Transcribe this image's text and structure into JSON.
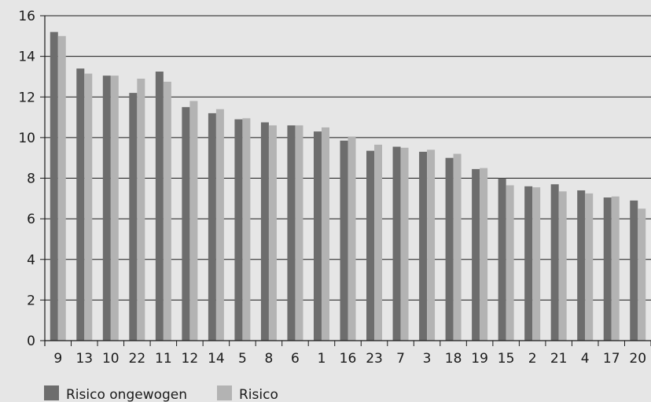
{
  "chart_data": {
    "type": "bar",
    "title": "",
    "xlabel": "",
    "ylabel": "",
    "ylim": [
      0,
      16
    ],
    "yticks": [
      0,
      2,
      4,
      6,
      8,
      10,
      12,
      14,
      16
    ],
    "grid": true,
    "legend_position": "bottom-left",
    "categories": [
      "9",
      "13",
      "10",
      "22",
      "11",
      "12",
      "14",
      "5",
      "8",
      "6",
      "1",
      "16",
      "23",
      "7",
      "3",
      "18",
      "19",
      "15",
      "2",
      "21",
      "4",
      "17",
      "20"
    ],
    "series": [
      {
        "name": "Risico ongewogen",
        "color": "#6d6d6d",
        "values": [
          15.2,
          13.4,
          13.05,
          12.2,
          13.25,
          11.5,
          11.2,
          10.9,
          10.75,
          10.6,
          10.3,
          9.85,
          9.35,
          9.55,
          9.3,
          9.0,
          8.45,
          8.0,
          7.6,
          7.7,
          7.4,
          7.05,
          6.9
        ]
      },
      {
        "name": "Risico",
        "color": "#b3b3b3",
        "values": [
          15.0,
          13.15,
          13.05,
          12.9,
          12.75,
          11.8,
          11.4,
          10.95,
          10.6,
          10.6,
          10.5,
          10.05,
          9.65,
          9.5,
          9.4,
          9.2,
          8.5,
          7.65,
          7.55,
          7.35,
          7.25,
          7.1,
          6.5
        ]
      }
    ]
  }
}
